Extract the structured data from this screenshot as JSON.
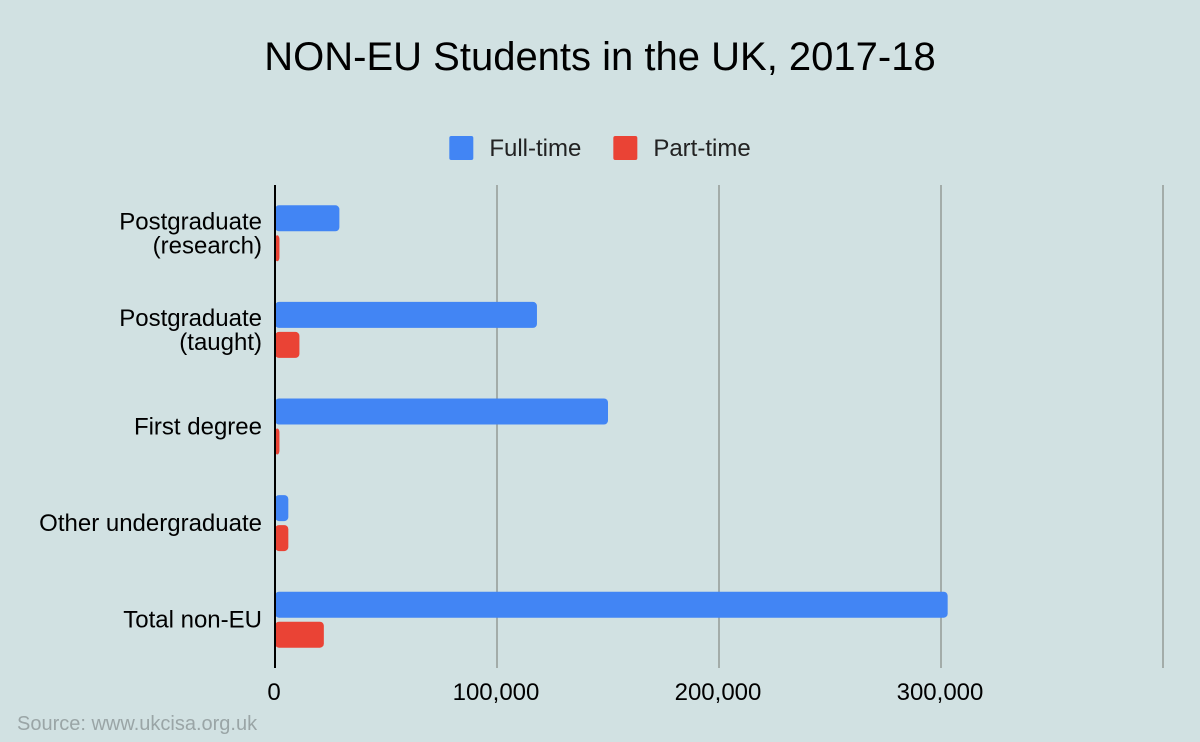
{
  "chart_data": {
    "type": "bar",
    "orientation": "horizontal",
    "title": "NON-EU Students in the UK, 2017-18",
    "categories": [
      "Postgraduate (research)",
      "Postgraduate (taught)",
      "First degree",
      "Other undergraduate",
      "Total non-EU"
    ],
    "series": [
      {
        "name": "Full-time",
        "color": "#4285f4",
        "values": [
          29000,
          118000,
          150000,
          6000,
          303000
        ]
      },
      {
        "name": "Part-time",
        "color": "#ea4335",
        "values": [
          2000,
          11000,
          2000,
          6000,
          22000
        ]
      }
    ],
    "x_ticks": [
      "0",
      "100,000",
      "200,000",
      "300,000"
    ],
    "xlim": [
      0,
      400000
    ],
    "grid": true,
    "legend_position": "top"
  },
  "source": "Source: www.ukcisa.org.uk"
}
